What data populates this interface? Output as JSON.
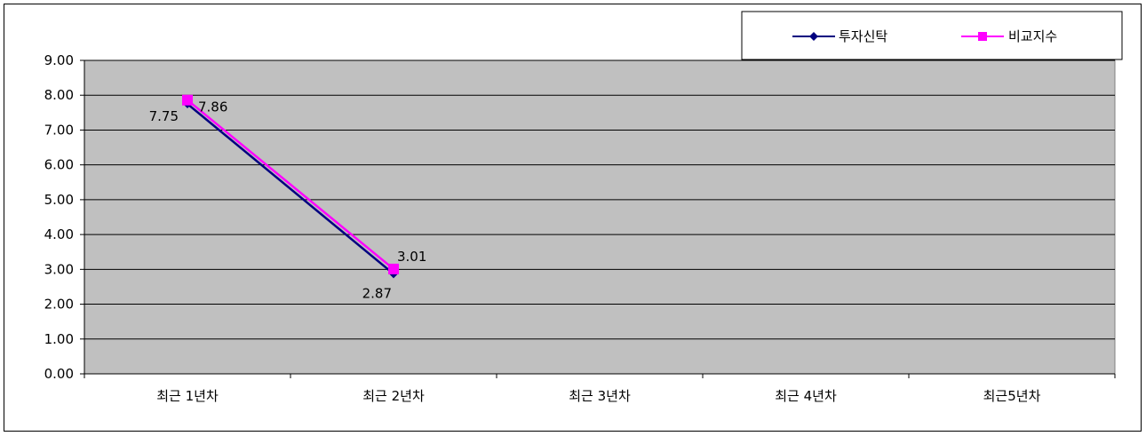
{
  "chart_data": {
    "type": "line",
    "categories": [
      "최근 1년차",
      "최근 2년차",
      "최근 3년차",
      "최근 4년차",
      "최근5년차"
    ],
    "series": [
      {
        "name": "투자신탁",
        "values": [
          7.75,
          2.87,
          null,
          null,
          null
        ],
        "labels": [
          "7.75",
          "2.87"
        ],
        "color": "#000080",
        "marker": "diamond"
      },
      {
        "name": "비교지수",
        "values": [
          7.86,
          3.01,
          null,
          null,
          null
        ],
        "labels": [
          "7.86",
          "3.01"
        ],
        "color": "#FF00FF",
        "marker": "square"
      }
    ],
    "ylim": [
      0,
      9
    ],
    "yticks": [
      "0.00",
      "1.00",
      "2.00",
      "3.00",
      "4.00",
      "5.00",
      "6.00",
      "7.00",
      "8.00",
      "9.00"
    ],
    "grid": true,
    "plot_background": "#C0C0C0",
    "legend_position": "top-right"
  }
}
